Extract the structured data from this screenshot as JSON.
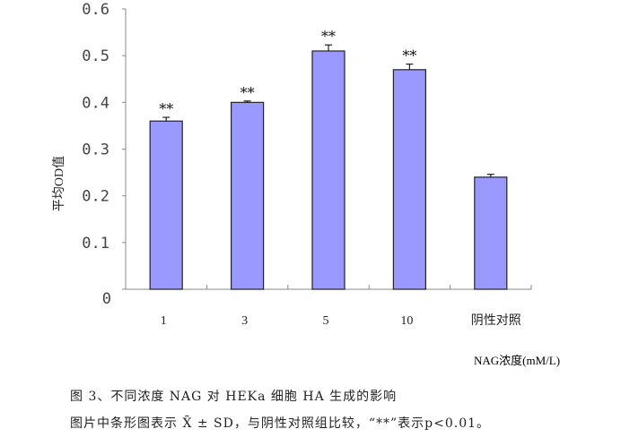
{
  "chart_data": {
    "type": "bar",
    "title": "",
    "xlabel": "NAG浓度(mM/L)",
    "ylabel": "平均OD值",
    "categories": [
      "1",
      "3",
      "5",
      "10",
      "阴性对照"
    ],
    "values": [
      0.36,
      0.4,
      0.51,
      0.47,
      0.24
    ],
    "errors": [
      0.008,
      0.003,
      0.013,
      0.012,
      0.006
    ],
    "annotations": [
      "**",
      "**",
      "**",
      "**",
      ""
    ],
    "ylim": [
      0,
      0.6
    ],
    "yticks": [
      "0",
      "0.1",
      "0.2",
      "0.3",
      "0.4",
      "0.5",
      "0.6"
    ],
    "bar_color": "#9999ff",
    "grid": false,
    "legend": "none"
  },
  "caption": {
    "line1": "图 3、不同浓度 NAG 对 HEKa 细胞 HA 生成的影响",
    "line2": "图片中条形图表示 X̄ ± SD，与阴性对照组比较，“**”表示p<0.01。"
  }
}
